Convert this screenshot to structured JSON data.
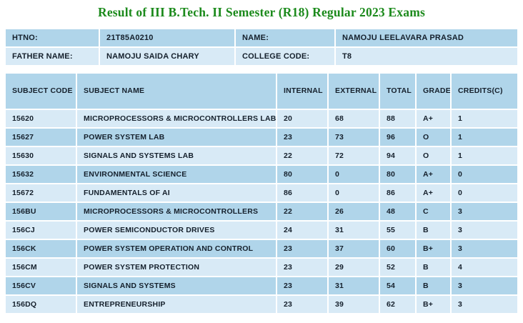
{
  "title": "Result of III B.Tech. II Semester (R18) Regular 2023 Exams",
  "student_info": {
    "rows": [
      [
        {
          "label": "HTNO:",
          "value": "21T85A0210"
        },
        {
          "label": "NAME:",
          "value": "NAMOJU LEELAVARA PRASAD"
        }
      ],
      [
        {
          "label": "FATHER NAME:",
          "value": "NAMOJU SAIDA CHARY"
        },
        {
          "label": "COLLEGE CODE:",
          "value": "T8"
        }
      ]
    ]
  },
  "results_table": {
    "headers": [
      "SUBJECT CODE",
      "SUBJECT NAME",
      "INTERNAL",
      "EXTERNAL",
      "TOTAL",
      "GRADE",
      "CREDITS(C)"
    ],
    "rows": [
      [
        "15620",
        "MICROPROCESSORS & MICROCONTROLLERS LAB",
        "20",
        "68",
        "88",
        "A+",
        "1"
      ],
      [
        "15627",
        "POWER SYSTEM LAB",
        "23",
        "73",
        "96",
        "O",
        "1"
      ],
      [
        "15630",
        "SIGNALS AND SYSTEMS LAB",
        "22",
        "72",
        "94",
        "O",
        "1"
      ],
      [
        "15632",
        "ENVIRONMENTAL SCIENCE",
        "80",
        "0",
        "80",
        "A+",
        "0"
      ],
      [
        "15672",
        "FUNDAMENTALS OF AI",
        "86",
        "0",
        "86",
        "A+",
        "0"
      ],
      [
        "156BU",
        "MICROPROCESSORS & MICROCONTROLLERS",
        "22",
        "26",
        "48",
        "C",
        "3"
      ],
      [
        "156CJ",
        "POWER SEMICONDUCTOR DRIVES",
        "24",
        "31",
        "55",
        "B",
        "3"
      ],
      [
        "156CK",
        "POWER SYSTEM OPERATION AND CONTROL",
        "23",
        "37",
        "60",
        "B+",
        "3"
      ],
      [
        "156CM",
        "POWER SYSTEM PROTECTION",
        "23",
        "29",
        "52",
        "B",
        "4"
      ],
      [
        "156CV",
        "SIGNALS AND SYSTEMS",
        "23",
        "31",
        "54",
        "B",
        "3"
      ],
      [
        "156DQ",
        "ENTREPRENEURSHIP",
        "23",
        "39",
        "62",
        "B+",
        "3"
      ]
    ]
  },
  "colors": {
    "row_dark": "#b0d5ea",
    "row_light": "#d8eaf6",
    "header_bg": "#b0d5ea",
    "title_green": "#1b8a1b",
    "text": "#15202c",
    "background": "#ffffff"
  }
}
